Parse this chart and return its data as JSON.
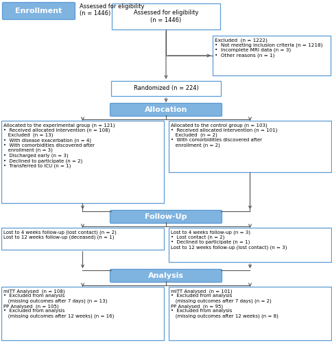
{
  "enrollment_label": "Enrollment",
  "allocation_label": "Allocation",
  "followup_label": "Follow-Up",
  "analysis_label": "Analysis",
  "box_border_color": "#5b9bd5",
  "box_fill_header": "#7fb3e0",
  "box_text_header": "white",
  "arrow_color": "#555555",
  "bg_color": "white",
  "assessed_text": "Assessed for eligibility\n(n = 1446)",
  "excluded_text": "Excluded  (n = 1222)\n•  Not meeting inclusion criteria (n = 1218)\n•  Incomplete MRI data (n = 3)\n•  Other reasons (n = 1)",
  "randomized_text": "Randomized (n = 224)",
  "alloc_exp_text": "Allocated to the experimental group (n = 121)\n•  Received allocated intervention (n = 108)\n   Excluded  (n = 13)\n•  With disease exacerbation (n = 4)\n•  With comorbidities discovered after\n   enrollment (n = 3)\n•  Discharged early (n = 3)\n•  Declined to participate (n = 2)\n•  Transferred to ICU (n = 1)",
  "alloc_ctrl_text": "Allocated to the control group (n = 103)\n•  Received allocated intervention (n = 101)\n   Excluded  (n = 2)\n•  With comorbidities discovered after\n   enrollment (n = 2)",
  "followup_exp_text": "Lost to 4 weeks follow-up (lost contact) (n = 2)\nLost to 12 weeks follow-up (deceased) (n = 1)",
  "followup_ctrl_text": "Lost to 4 weeks follow-up (n = 3)\n•  Lost contact (n = 2)\n•  Declined to participate (n = 1)\nLost to 12 weeks follow-up (lost contact) (n = 3)",
  "analysis_exp_text": "mITT Analysed  (n = 108)\n•  Excluded from analysis\n   (missing outcomes after 7 days) (n = 13)\nPP Analysed  (n = 105)\n•  Excluded from analysis\n   (missing outcomes after 12 weeks) (n = 16)",
  "analysis_ctrl_text": "mITT Analysed  (n = 101)\n•  Excluded from analysis\n   (missing outcomes after 7 days) (n = 2)\nPP Analysed  (n = 95)\n•  Excluded from analysis\n   (missing outcomes after 12 weeks) (n = 8)"
}
